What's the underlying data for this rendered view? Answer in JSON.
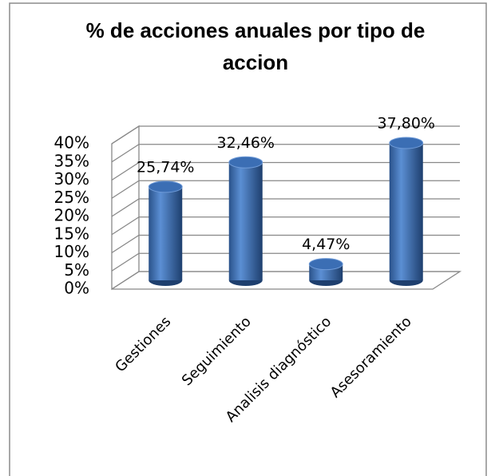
{
  "chart_data": {
    "type": "bar3d",
    "title": "% de acciones anuales por  tipo de accion",
    "categories": [
      "Gestiones",
      "Seguimiento",
      "Analisis diagnóstico",
      "Asesoramiento"
    ],
    "values": [
      25.74,
      32.46,
      4.47,
      37.8
    ],
    "value_labels": [
      "25,74%",
      "32,46%",
      "4,47%",
      "37,80%"
    ],
    "color": "#3b6eb4",
    "ylim": [
      0,
      40
    ],
    "yticks": [
      {
        "value": 0,
        "label": "0%"
      },
      {
        "value": 5,
        "label": "5%"
      },
      {
        "value": 10,
        "label": "10%"
      },
      {
        "value": 15,
        "label": "15%"
      },
      {
        "value": 20,
        "label": "20%"
      },
      {
        "value": 25,
        "label": "25%"
      },
      {
        "value": 30,
        "label": "30%"
      },
      {
        "value": 35,
        "label": "35%"
      },
      {
        "value": 40,
        "label": "40%"
      }
    ],
    "grid": true
  }
}
